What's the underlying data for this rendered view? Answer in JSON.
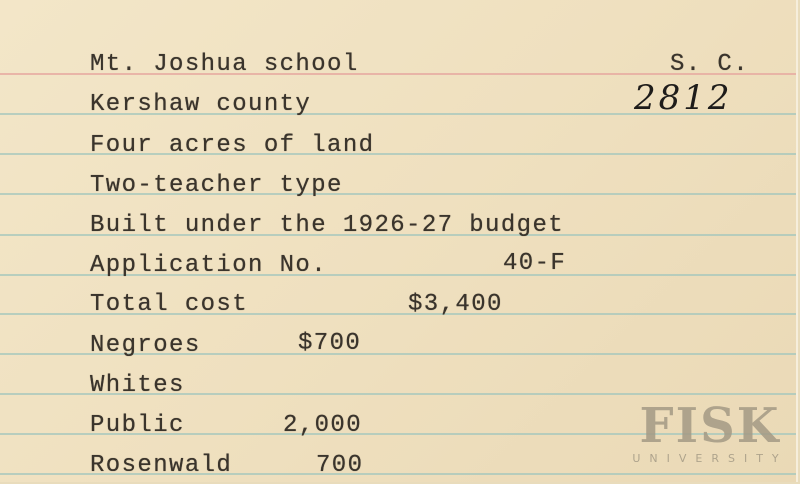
{
  "card": {
    "lines": [
      "Mt. Joshua school",
      "Kershaw county",
      "Four acres of land",
      "Two-teacher type",
      "Built under the 1926-27 budget",
      "Application No.",
      "Total cost",
      "Negroes",
      "Whites",
      "Public",
      "Rosenwald"
    ],
    "state": "S. C.",
    "card_number": "2812",
    "application_no": "40-F",
    "total_cost": "$3,400",
    "negroes_amount": "$700",
    "public_amount": "2,000",
    "rosenwald_amount": "700"
  },
  "watermark": {
    "name": "FISK",
    "subtitle": "UNIVERSITY"
  },
  "colors": {
    "paper": "#f0e2c2",
    "red_rule": "#e6a9a0",
    "blue_rule": "#a9c8bd",
    "ink": "#3a342c"
  }
}
